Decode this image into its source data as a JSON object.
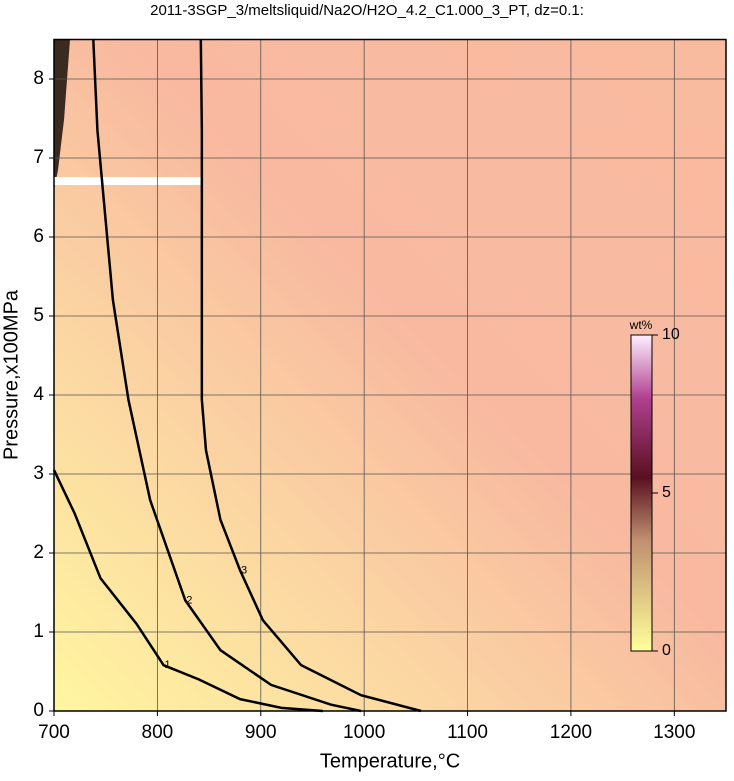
{
  "chart_data": {
    "type": "contour",
    "title": "2011-3SGP_3/meltsliquid/Na2O/H2O_4.2_C1.000_3_PT, dz=0.1:",
    "x_label": "Temperature,°C",
    "y_label": "Pressure,x100MPa",
    "xlim": [
      700,
      1350
    ],
    "xticks": [
      700,
      800,
      900,
      1000,
      1100,
      1200,
      1300
    ],
    "ylim": [
      0,
      8.5
    ],
    "yticks": [
      0,
      1,
      2,
      3,
      4,
      5,
      6,
      7,
      8
    ],
    "grid": true,
    "contours": [
      {
        "label": "1",
        "x": [
          700,
          720,
          745,
          780,
          806,
          840,
          880,
          920,
          960
        ],
        "y": [
          3.05,
          2.5,
          1.68,
          1.1,
          0.58,
          0.4,
          0.15,
          0.04,
          0
        ]
      },
      {
        "label": "2",
        "x": [
          738,
          742,
          757,
          772,
          793,
          827,
          861,
          910,
          968,
          997
        ],
        "y": [
          8.5,
          7.35,
          5.2,
          3.94,
          2.67,
          1.4,
          0.77,
          0.33,
          0.08,
          0
        ]
      },
      {
        "label": "3",
        "x": [
          842,
          843,
          843,
          847,
          861,
          880,
          902,
          939,
          997,
          1055
        ],
        "y": [
          8.5,
          7.35,
          3.94,
          3.3,
          2.42,
          1.78,
          1.15,
          0.58,
          0.2,
          0
        ]
      }
    ],
    "colorbar": {
      "label": "wt%",
      "lim": [
        0,
        10
      ],
      "ticks": [
        0,
        5,
        10
      ]
    }
  }
}
